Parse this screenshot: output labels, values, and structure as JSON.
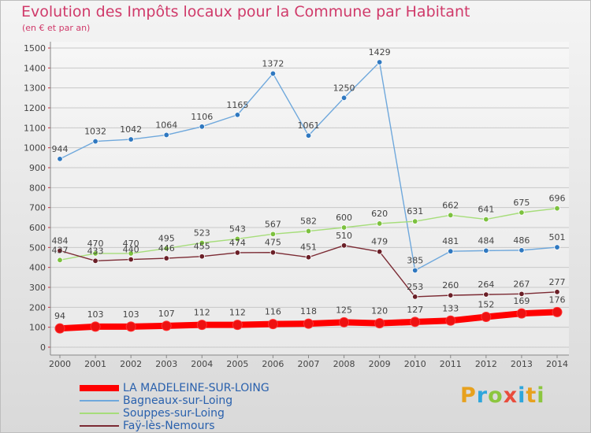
{
  "title": "Evolution des Impôts locaux pour la Commune par Habitant",
  "subtitle": "(en € et par an)",
  "logo": "Proxiti",
  "chart_data": {
    "type": "line",
    "title": "Evolution des Impôts locaux pour la Commune par Habitant",
    "subtitle": "(en € et par an)",
    "xlabel": "",
    "ylabel": "",
    "x": [
      "2000",
      "2001",
      "2002",
      "2003",
      "2004",
      "2005",
      "2006",
      "2007",
      "2008",
      "2009",
      "2010",
      "2011",
      "2012",
      "2013",
      "2014"
    ],
    "ylim": [
      0,
      1500
    ],
    "yticks": [
      0,
      100,
      200,
      300,
      400,
      500,
      600,
      700,
      800,
      900,
      1000,
      1100,
      1200,
      1300,
      1400,
      1500
    ],
    "grid": true,
    "legend": "bottom-left",
    "series": [
      {
        "name": "LA MADELEINE-SUR-LOING",
        "color": "#ff0000",
        "marker": "#ee1111",
        "thick": true,
        "values": [
          94,
          103,
          103,
          107,
          112,
          112,
          116,
          118,
          125,
          120,
          127,
          133,
          152,
          169,
          176
        ]
      },
      {
        "name": "Bagneaux-sur-Loing",
        "color": "#6fa8dc",
        "marker": "#2f78c0",
        "thick": false,
        "values": [
          944,
          1032,
          1042,
          1064,
          1106,
          1165,
          1372,
          1061,
          1250,
          1429,
          385,
          481,
          484,
          486,
          501
        ]
      },
      {
        "name": "Souppes-sur-Loing",
        "color": "#a6dd7a",
        "marker": "#7cc13e",
        "thick": false,
        "values": [
          437,
          470,
          470,
          495,
          523,
          543,
          567,
          582,
          600,
          620,
          631,
          662,
          641,
          675,
          696
        ]
      },
      {
        "name": "Faÿ-lès-Nemours",
        "color": "#7b2a33",
        "marker": "#6a1f27",
        "thick": false,
        "values": [
          484,
          433,
          440,
          446,
          455,
          474,
          475,
          451,
          510,
          479,
          253,
          260,
          264,
          267,
          277
        ]
      }
    ]
  }
}
